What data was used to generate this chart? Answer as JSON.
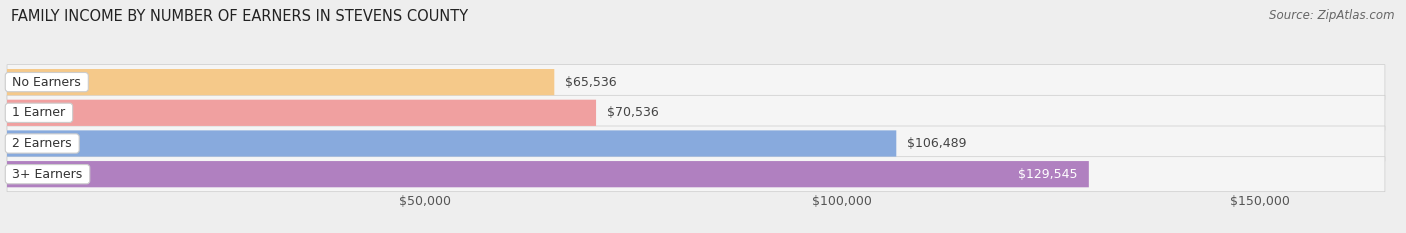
{
  "title": "FAMILY INCOME BY NUMBER OF EARNERS IN STEVENS COUNTY",
  "source": "Source: ZipAtlas.com",
  "categories": [
    "No Earners",
    "1 Earner",
    "2 Earners",
    "3+ Earners"
  ],
  "values": [
    65536,
    70536,
    106489,
    129545
  ],
  "bar_colors": [
    "#f5c98a",
    "#f0a0a0",
    "#88aadd",
    "#b080c0"
  ],
  "label_colors": [
    "#444444",
    "#444444",
    "#444444",
    "#ffffff"
  ],
  "value_labels": [
    "$65,536",
    "$70,536",
    "$106,489",
    "$129,545"
  ],
  "x_min": 0,
  "x_max": 165000,
  "x_ticks": [
    50000,
    100000,
    150000
  ],
  "x_tick_labels": [
    "$50,000",
    "$100,000",
    "$150,000"
  ],
  "background_color": "#eeeeee",
  "bar_background_color": "#f5f5f5",
  "title_fontsize": 10.5,
  "source_fontsize": 8.5,
  "tick_fontsize": 9,
  "label_fontsize": 9,
  "value_fontsize": 9
}
